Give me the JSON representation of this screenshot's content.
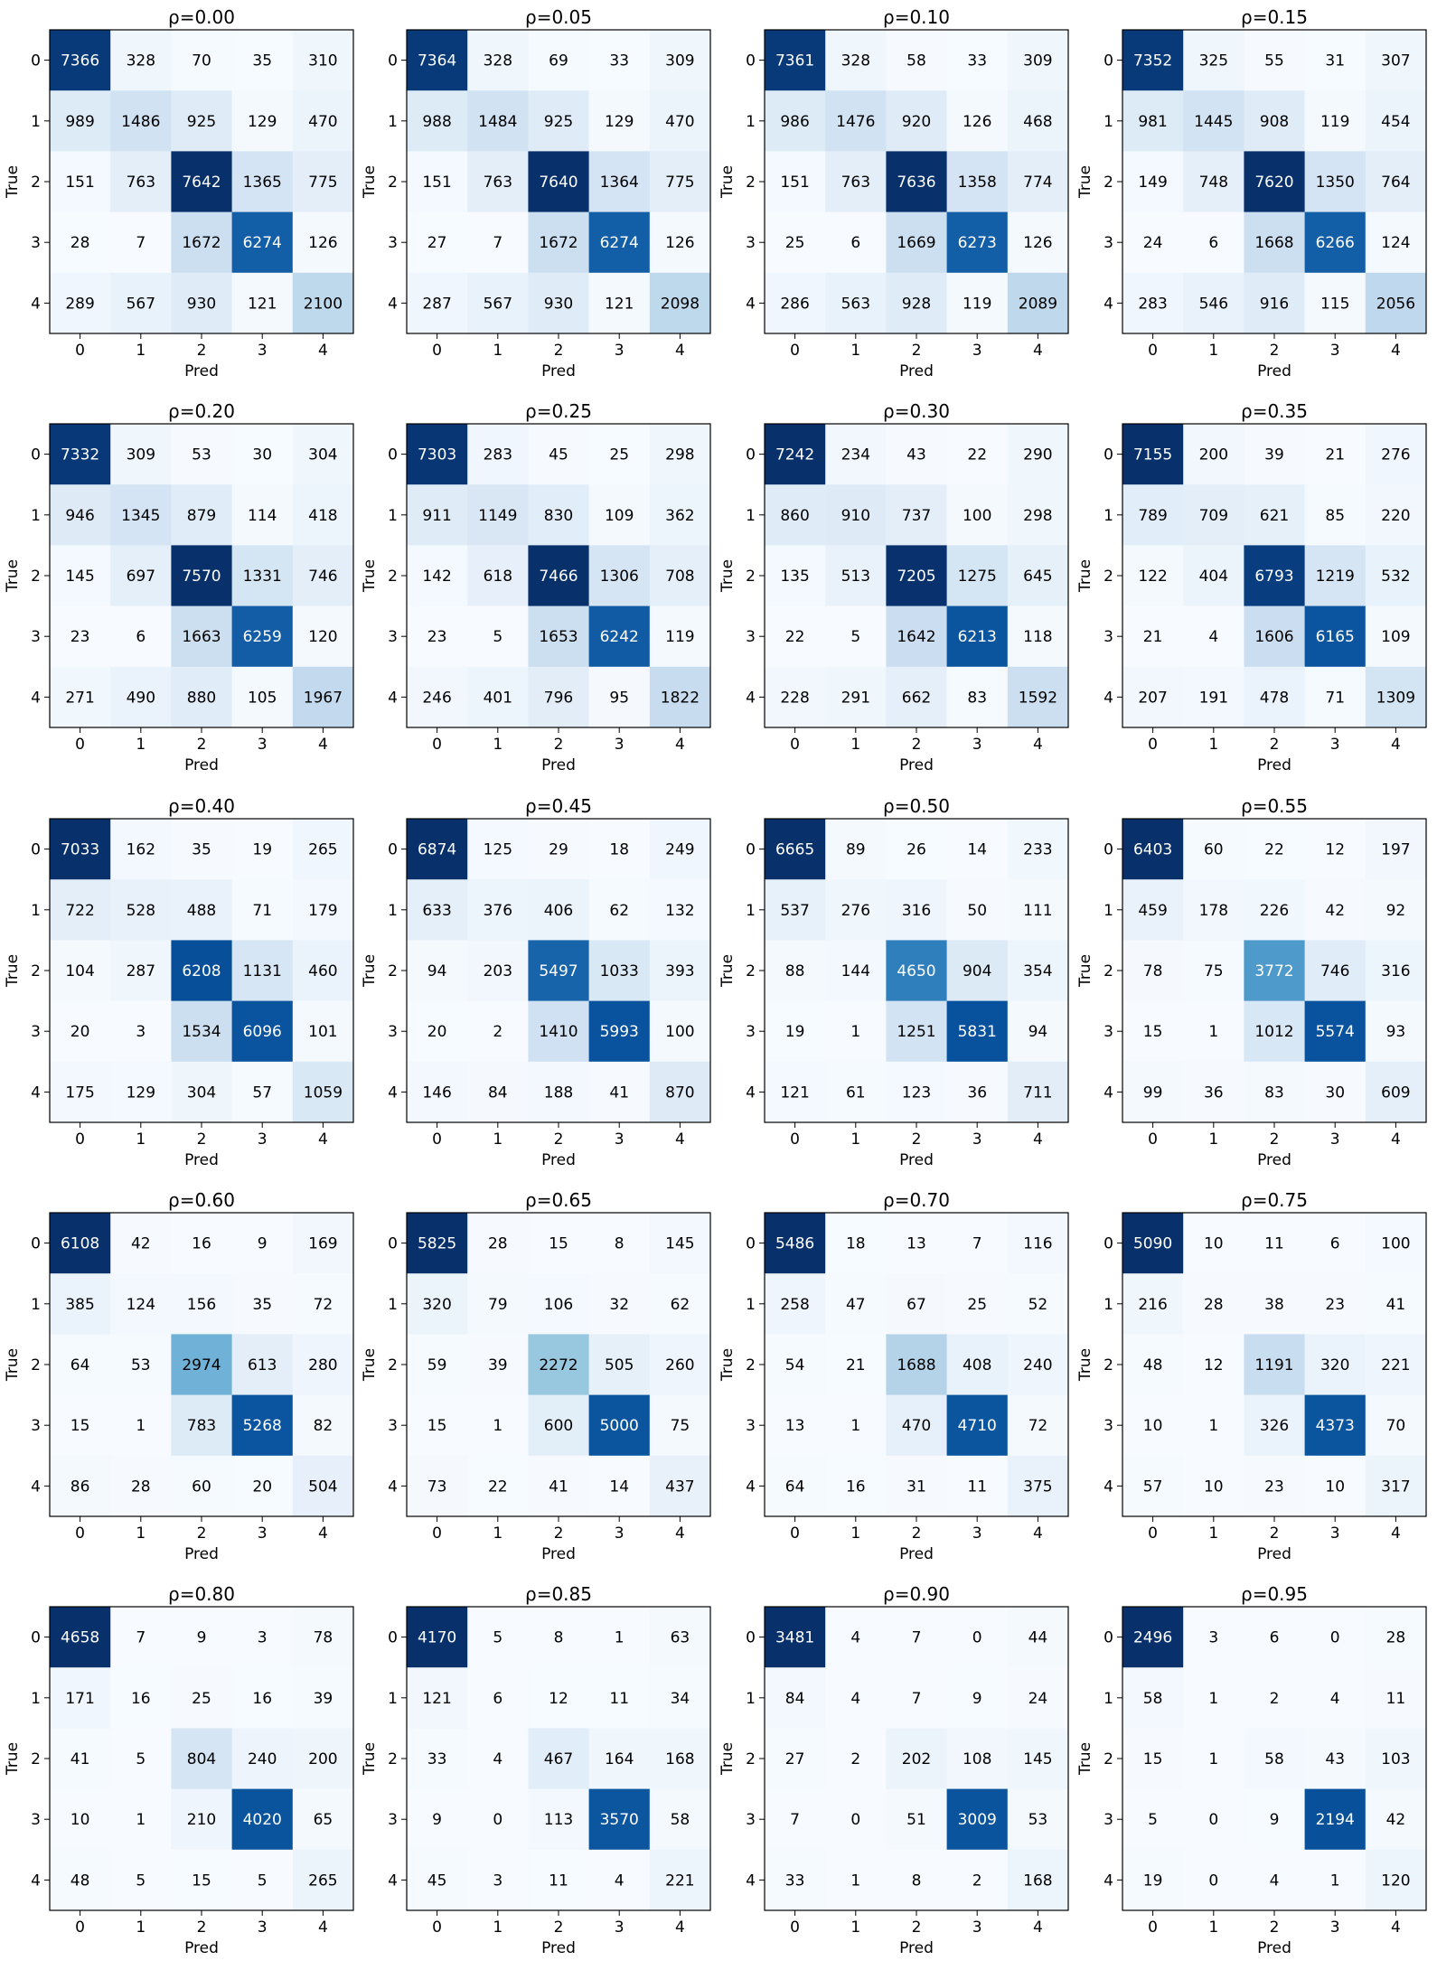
{
  "figure": {
    "colormap": "Blues",
    "cmap_stops": [
      "#f7fbff",
      "#deebf7",
      "#c6dbef",
      "#9ecae1",
      "#6baed6",
      "#4292c6",
      "#2171b5",
      "#08519c",
      "#08306b"
    ]
  },
  "chart_data": [
    {
      "type": "heatmap",
      "title": "ρ=0.00",
      "xlabel": "Pred",
      "ylabel": "True",
      "x_ticks": [
        "0",
        "1",
        "2",
        "3",
        "4"
      ],
      "y_ticks": [
        "0",
        "1",
        "2",
        "3",
        "4"
      ],
      "matrix": [
        [
          7366,
          328,
          70,
          35,
          310
        ],
        [
          989,
          1486,
          925,
          129,
          470
        ],
        [
          151,
          763,
          7642,
          1365,
          775
        ],
        [
          28,
          7,
          1672,
          6274,
          126
        ],
        [
          289,
          567,
          930,
          121,
          2100
        ]
      ]
    },
    {
      "type": "heatmap",
      "title": "ρ=0.05",
      "xlabel": "Pred",
      "ylabel": "True",
      "x_ticks": [
        "0",
        "1",
        "2",
        "3",
        "4"
      ],
      "y_ticks": [
        "0",
        "1",
        "2",
        "3",
        "4"
      ],
      "matrix": [
        [
          7364,
          328,
          69,
          33,
          309
        ],
        [
          988,
          1484,
          925,
          129,
          470
        ],
        [
          151,
          763,
          7640,
          1364,
          775
        ],
        [
          27,
          7,
          1672,
          6274,
          126
        ],
        [
          287,
          567,
          930,
          121,
          2098
        ]
      ]
    },
    {
      "type": "heatmap",
      "title": "ρ=0.10",
      "xlabel": "Pred",
      "ylabel": "True",
      "x_ticks": [
        "0",
        "1",
        "2",
        "3",
        "4"
      ],
      "y_ticks": [
        "0",
        "1",
        "2",
        "3",
        "4"
      ],
      "matrix": [
        [
          7361,
          328,
          58,
          33,
          309
        ],
        [
          986,
          1476,
          920,
          126,
          468
        ],
        [
          151,
          763,
          7636,
          1358,
          774
        ],
        [
          25,
          6,
          1669,
          6273,
          126
        ],
        [
          286,
          563,
          928,
          119,
          2089
        ]
      ]
    },
    {
      "type": "heatmap",
      "title": "ρ=0.15",
      "xlabel": "Pred",
      "ylabel": "True",
      "x_ticks": [
        "0",
        "1",
        "2",
        "3",
        "4"
      ],
      "y_ticks": [
        "0",
        "1",
        "2",
        "3",
        "4"
      ],
      "matrix": [
        [
          7352,
          325,
          55,
          31,
          307
        ],
        [
          981,
          1445,
          908,
          119,
          454
        ],
        [
          149,
          748,
          7620,
          1350,
          764
        ],
        [
          24,
          6,
          1668,
          6266,
          124
        ],
        [
          283,
          546,
          916,
          115,
          2056
        ]
      ]
    },
    {
      "type": "heatmap",
      "title": "ρ=0.20",
      "xlabel": "Pred",
      "ylabel": "True",
      "x_ticks": [
        "0",
        "1",
        "2",
        "3",
        "4"
      ],
      "y_ticks": [
        "0",
        "1",
        "2",
        "3",
        "4"
      ],
      "matrix": [
        [
          7332,
          309,
          53,
          30,
          304
        ],
        [
          946,
          1345,
          879,
          114,
          418
        ],
        [
          145,
          697,
          7570,
          1331,
          746
        ],
        [
          23,
          6,
          1663,
          6259,
          120
        ],
        [
          271,
          490,
          880,
          105,
          1967
        ]
      ]
    },
    {
      "type": "heatmap",
      "title": "ρ=0.25",
      "xlabel": "Pred",
      "ylabel": "True",
      "x_ticks": [
        "0",
        "1",
        "2",
        "3",
        "4"
      ],
      "y_ticks": [
        "0",
        "1",
        "2",
        "3",
        "4"
      ],
      "matrix": [
        [
          7303,
          283,
          45,
          25,
          298
        ],
        [
          911,
          1149,
          830,
          109,
          362
        ],
        [
          142,
          618,
          7466,
          1306,
          708
        ],
        [
          23,
          5,
          1653,
          6242,
          119
        ],
        [
          246,
          401,
          796,
          95,
          1822
        ]
      ]
    },
    {
      "type": "heatmap",
      "title": "ρ=0.30",
      "xlabel": "Pred",
      "ylabel": "True",
      "x_ticks": [
        "0",
        "1",
        "2",
        "3",
        "4"
      ],
      "y_ticks": [
        "0",
        "1",
        "2",
        "3",
        "4"
      ],
      "matrix": [
        [
          7242,
          234,
          43,
          22,
          290
        ],
        [
          860,
          910,
          737,
          100,
          298
        ],
        [
          135,
          513,
          7205,
          1275,
          645
        ],
        [
          22,
          5,
          1642,
          6213,
          118
        ],
        [
          228,
          291,
          662,
          83,
          1592
        ]
      ]
    },
    {
      "type": "heatmap",
      "title": "ρ=0.35",
      "xlabel": "Pred",
      "ylabel": "True",
      "x_ticks": [
        "0",
        "1",
        "2",
        "3",
        "4"
      ],
      "y_ticks": [
        "0",
        "1",
        "2",
        "3",
        "4"
      ],
      "matrix": [
        [
          7155,
          200,
          39,
          21,
          276
        ],
        [
          789,
          709,
          621,
          85,
          220
        ],
        [
          122,
          404,
          6793,
          1219,
          532
        ],
        [
          21,
          4,
          1606,
          6165,
          109
        ],
        [
          207,
          191,
          478,
          71,
          1309
        ]
      ]
    },
    {
      "type": "heatmap",
      "title": "ρ=0.40",
      "xlabel": "Pred",
      "ylabel": "True",
      "x_ticks": [
        "0",
        "1",
        "2",
        "3",
        "4"
      ],
      "y_ticks": [
        "0",
        "1",
        "2",
        "3",
        "4"
      ],
      "matrix": [
        [
          7033,
          162,
          35,
          19,
          265
        ],
        [
          722,
          528,
          488,
          71,
          179
        ],
        [
          104,
          287,
          6208,
          1131,
          460
        ],
        [
          20,
          3,
          1534,
          6096,
          101
        ],
        [
          175,
          129,
          304,
          57,
          1059
        ]
      ]
    },
    {
      "type": "heatmap",
      "title": "ρ=0.45",
      "xlabel": "Pred",
      "ylabel": "True",
      "x_ticks": [
        "0",
        "1",
        "2",
        "3",
        "4"
      ],
      "y_ticks": [
        "0",
        "1",
        "2",
        "3",
        "4"
      ],
      "matrix": [
        [
          6874,
          125,
          29,
          18,
          249
        ],
        [
          633,
          376,
          406,
          62,
          132
        ],
        [
          94,
          203,
          5497,
          1033,
          393
        ],
        [
          20,
          2,
          1410,
          5993,
          100
        ],
        [
          146,
          84,
          188,
          41,
          870
        ]
      ]
    },
    {
      "type": "heatmap",
      "title": "ρ=0.50",
      "xlabel": "Pred",
      "ylabel": "True",
      "x_ticks": [
        "0",
        "1",
        "2",
        "3",
        "4"
      ],
      "y_ticks": [
        "0",
        "1",
        "2",
        "3",
        "4"
      ],
      "matrix": [
        [
          6665,
          89,
          26,
          14,
          233
        ],
        [
          537,
          276,
          316,
          50,
          111
        ],
        [
          88,
          144,
          4650,
          904,
          354
        ],
        [
          19,
          1,
          1251,
          5831,
          94
        ],
        [
          121,
          61,
          123,
          36,
          711
        ]
      ]
    },
    {
      "type": "heatmap",
      "title": "ρ=0.55",
      "xlabel": "Pred",
      "ylabel": "True",
      "x_ticks": [
        "0",
        "1",
        "2",
        "3",
        "4"
      ],
      "y_ticks": [
        "0",
        "1",
        "2",
        "3",
        "4"
      ],
      "matrix": [
        [
          6403,
          60,
          22,
          12,
          197
        ],
        [
          459,
          178,
          226,
          42,
          92
        ],
        [
          78,
          75,
          3772,
          746,
          316
        ],
        [
          15,
          1,
          1012,
          5574,
          93
        ],
        [
          99,
          36,
          83,
          30,
          609
        ]
      ]
    },
    {
      "type": "heatmap",
      "title": "ρ=0.60",
      "xlabel": "Pred",
      "ylabel": "True",
      "x_ticks": [
        "0",
        "1",
        "2",
        "3",
        "4"
      ],
      "y_ticks": [
        "0",
        "1",
        "2",
        "3",
        "4"
      ],
      "matrix": [
        [
          6108,
          42,
          16,
          9,
          169
        ],
        [
          385,
          124,
          156,
          35,
          72
        ],
        [
          64,
          53,
          2974,
          613,
          280
        ],
        [
          15,
          1,
          783,
          5268,
          82
        ],
        [
          86,
          28,
          60,
          20,
          504
        ]
      ]
    },
    {
      "type": "heatmap",
      "title": "ρ=0.65",
      "xlabel": "Pred",
      "ylabel": "True",
      "x_ticks": [
        "0",
        "1",
        "2",
        "3",
        "4"
      ],
      "y_ticks": [
        "0",
        "1",
        "2",
        "3",
        "4"
      ],
      "matrix": [
        [
          5825,
          28,
          15,
          8,
          145
        ],
        [
          320,
          79,
          106,
          32,
          62
        ],
        [
          59,
          39,
          2272,
          505,
          260
        ],
        [
          15,
          1,
          600,
          5000,
          75
        ],
        [
          73,
          22,
          41,
          14,
          437
        ]
      ]
    },
    {
      "type": "heatmap",
      "title": "ρ=0.70",
      "xlabel": "Pred",
      "ylabel": "True",
      "x_ticks": [
        "0",
        "1",
        "2",
        "3",
        "4"
      ],
      "y_ticks": [
        "0",
        "1",
        "2",
        "3",
        "4"
      ],
      "matrix": [
        [
          5486,
          18,
          13,
          7,
          116
        ],
        [
          258,
          47,
          67,
          25,
          52
        ],
        [
          54,
          21,
          1688,
          408,
          240
        ],
        [
          13,
          1,
          470,
          4710,
          72
        ],
        [
          64,
          16,
          31,
          11,
          375
        ]
      ]
    },
    {
      "type": "heatmap",
      "title": "ρ=0.75",
      "xlabel": "Pred",
      "ylabel": "True",
      "x_ticks": [
        "0",
        "1",
        "2",
        "3",
        "4"
      ],
      "y_ticks": [
        "0",
        "1",
        "2",
        "3",
        "4"
      ],
      "matrix": [
        [
          5090,
          10,
          11,
          6,
          100
        ],
        [
          216,
          28,
          38,
          23,
          41
        ],
        [
          48,
          12,
          1191,
          320,
          221
        ],
        [
          10,
          1,
          326,
          4373,
          70
        ],
        [
          57,
          10,
          23,
          10,
          317
        ]
      ]
    },
    {
      "type": "heatmap",
      "title": "ρ=0.80",
      "xlabel": "Pred",
      "ylabel": "True",
      "x_ticks": [
        "0",
        "1",
        "2",
        "3",
        "4"
      ],
      "y_ticks": [
        "0",
        "1",
        "2",
        "3",
        "4"
      ],
      "matrix": [
        [
          4658,
          7,
          9,
          3,
          78
        ],
        [
          171,
          16,
          25,
          16,
          39
        ],
        [
          41,
          5,
          804,
          240,
          200
        ],
        [
          10,
          1,
          210,
          4020,
          65
        ],
        [
          48,
          5,
          15,
          5,
          265
        ]
      ]
    },
    {
      "type": "heatmap",
      "title": "ρ=0.85",
      "xlabel": "Pred",
      "ylabel": "True",
      "x_ticks": [
        "0",
        "1",
        "2",
        "3",
        "4"
      ],
      "y_ticks": [
        "0",
        "1",
        "2",
        "3",
        "4"
      ],
      "matrix": [
        [
          4170,
          5,
          8,
          1,
          63
        ],
        [
          121,
          6,
          12,
          11,
          34
        ],
        [
          33,
          4,
          467,
          164,
          168
        ],
        [
          9,
          0,
          113,
          3570,
          58
        ],
        [
          45,
          3,
          11,
          4,
          221
        ]
      ]
    },
    {
      "type": "heatmap",
      "title": "ρ=0.90",
      "xlabel": "Pred",
      "ylabel": "True",
      "x_ticks": [
        "0",
        "1",
        "2",
        "3",
        "4"
      ],
      "y_ticks": [
        "0",
        "1",
        "2",
        "3",
        "4"
      ],
      "matrix": [
        [
          3481,
          4,
          7,
          0,
          44
        ],
        [
          84,
          4,
          7,
          9,
          24
        ],
        [
          27,
          2,
          202,
          108,
          145
        ],
        [
          7,
          0,
          51,
          3009,
          53
        ],
        [
          33,
          1,
          8,
          2,
          168
        ]
      ]
    },
    {
      "type": "heatmap",
      "title": "ρ=0.95",
      "xlabel": "Pred",
      "ylabel": "True",
      "x_ticks": [
        "0",
        "1",
        "2",
        "3",
        "4"
      ],
      "y_ticks": [
        "0",
        "1",
        "2",
        "3",
        "4"
      ],
      "matrix": [
        [
          2496,
          3,
          6,
          0,
          28
        ],
        [
          58,
          1,
          2,
          4,
          11
        ],
        [
          15,
          1,
          58,
          43,
          103
        ],
        [
          5,
          0,
          9,
          2194,
          42
        ],
        [
          19,
          0,
          4,
          1,
          120
        ]
      ]
    }
  ]
}
